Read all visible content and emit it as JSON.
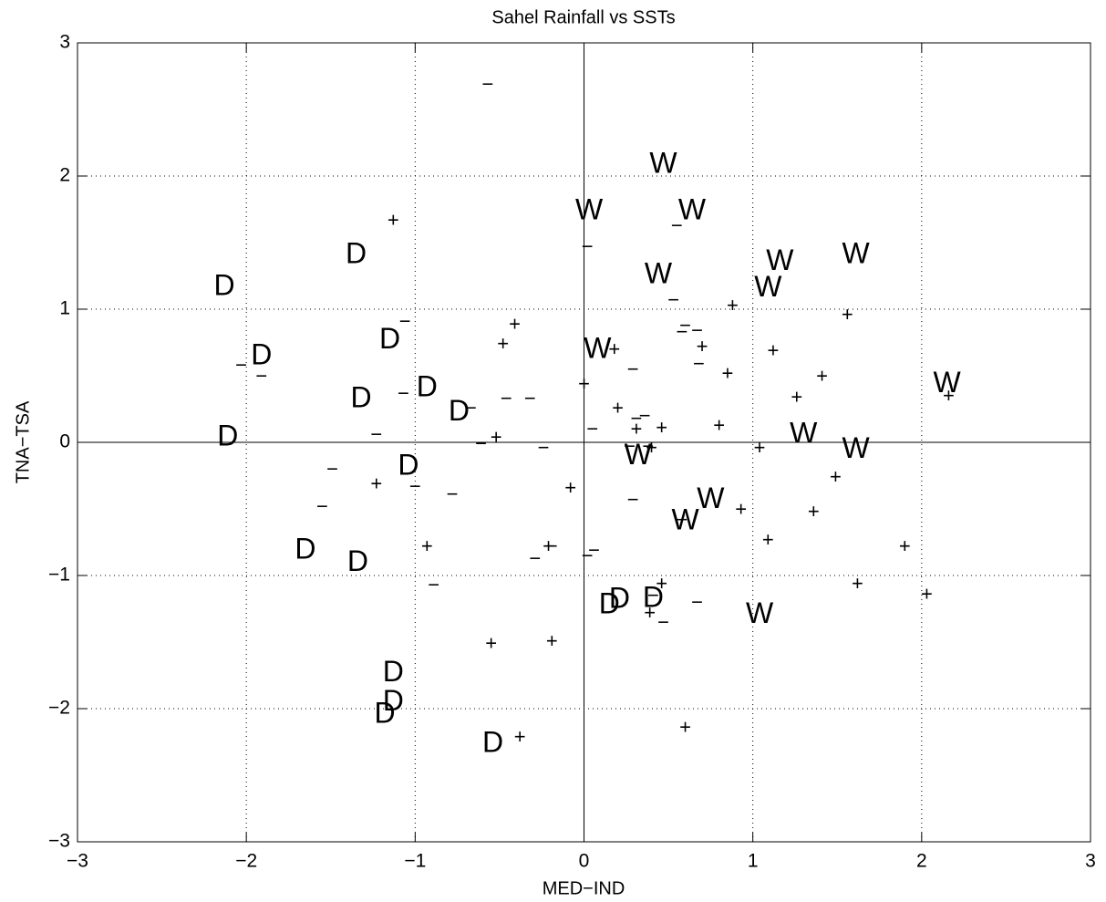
{
  "chart_data": {
    "type": "scatter",
    "title": "Sahel Rainfall vs SSTs",
    "x_label": "MED−IND",
    "y_label": "TNA−TSA",
    "xlim": [
      -3,
      3
    ],
    "ylim": [
      -3,
      3
    ],
    "xticks": [
      {
        "value": -3,
        "label": "−3"
      },
      {
        "value": -2,
        "label": "−2"
      },
      {
        "value": -1,
        "label": "−1"
      },
      0,
      1,
      2,
      3
    ],
    "yticks": [
      {
        "value": -3,
        "label": "−3"
      },
      {
        "value": -2,
        "label": "−2"
      },
      {
        "value": -1,
        "label": "−1"
      },
      0,
      1,
      2,
      3
    ],
    "grid": true,
    "series": [
      {
        "marker": "D",
        "color": "#000000",
        "x": [
          -1.35,
          -2.13,
          -1.91,
          -1.15,
          -1.32,
          -0.93,
          -0.74,
          -2.11,
          -1.04,
          -1.65,
          -1.34,
          0.15,
          0.21,
          0.41,
          -1.13,
          -1.13,
          -1.18,
          -0.54
        ],
        "y": [
          1.41,
          1.17,
          0.65,
          0.77,
          0.33,
          0.41,
          0.23,
          0.04,
          -0.18,
          -0.81,
          -0.9,
          -1.22,
          -1.18,
          -1.17,
          -1.73,
          -1.95,
          -2.04,
          -2.26
        ]
      },
      {
        "marker": "W",
        "color": "#000000",
        "x": [
          0.47,
          0.03,
          0.64,
          0.44,
          1.16,
          1.61,
          1.09,
          0.08,
          2.15,
          1.3,
          1.61,
          0.32,
          0.75,
          0.6,
          1.04
        ],
        "y": [
          2.09,
          1.74,
          1.74,
          1.26,
          1.36,
          1.41,
          1.16,
          0.7,
          0.44,
          0.06,
          -0.05,
          -0.1,
          -0.43,
          -0.59,
          -1.29
        ]
      },
      {
        "marker": "+",
        "color": "#000000",
        "x": [
          -1.13,
          -0.41,
          -0.48,
          1.56,
          0.88,
          0.18,
          0.7,
          1.12,
          0.85,
          1.41,
          0.0,
          0.2,
          1.26,
          2.16,
          0.31,
          0.46,
          0.8,
          -0.52,
          0.4,
          1.04,
          -1.23,
          -0.08,
          1.49,
          0.93,
          1.36,
          -0.93,
          -0.21,
          1.09,
          1.9,
          1.62,
          0.46,
          2.03,
          0.39,
          -0.55,
          -0.19,
          0.6,
          -0.38
        ],
        "y": [
          1.66,
          0.88,
          0.73,
          0.95,
          1.02,
          0.69,
          0.71,
          0.68,
          0.51,
          0.49,
          0.43,
          0.25,
          0.33,
          0.34,
          0.09,
          0.1,
          0.12,
          0.03,
          -0.05,
          -0.05,
          -0.32,
          -0.35,
          -0.27,
          -0.51,
          -0.53,
          -0.79,
          -0.79,
          -0.74,
          -0.79,
          -1.07,
          -1.07,
          -1.15,
          -1.29,
          -1.52,
          -1.5,
          -2.15,
          -2.22
        ]
      },
      {
        "marker": "−",
        "color": "#000000",
        "x": [
          -0.57,
          0.02,
          0.55,
          0.53,
          -1.06,
          0.6,
          0.67,
          0.58,
          0.68,
          0.29,
          -2.03,
          -1.91,
          -1.07,
          -0.46,
          -0.32,
          -0.67,
          0.31,
          0.36,
          0.05,
          -1.23,
          -0.61,
          -0.24,
          0.27,
          0.38,
          -1.49,
          -1.0,
          -0.78,
          0.29,
          -1.55,
          0.58,
          -0.19,
          0.06,
          -0.29,
          0.02,
          -0.89,
          0.41,
          0.67,
          0.47
        ],
        "y": [
          2.68,
          1.46,
          1.62,
          1.06,
          0.9,
          0.87,
          0.83,
          0.82,
          0.58,
          0.54,
          0.57,
          0.49,
          0.36,
          0.32,
          0.32,
          0.25,
          0.17,
          0.19,
          0.09,
          0.05,
          -0.02,
          -0.05,
          -0.04,
          -0.04,
          -0.21,
          -0.34,
          -0.4,
          -0.44,
          -0.49,
          -0.59,
          -0.79,
          -0.82,
          -0.88,
          -0.86,
          -1.08,
          -1.16,
          -1.21,
          -1.36
        ]
      }
    ]
  }
}
